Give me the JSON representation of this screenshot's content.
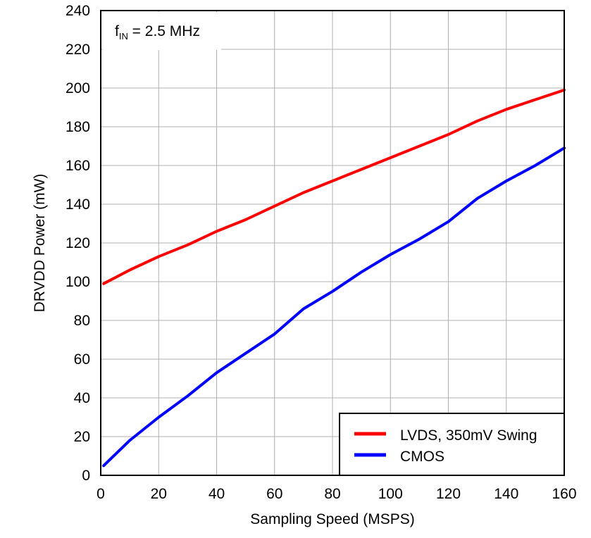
{
  "chart_data": {
    "type": "line",
    "title": "",
    "xlabel": "Sampling Speed (MSPS)",
    "ylabel": "DRVDD Power (mW)",
    "xlim": [
      0,
      160
    ],
    "ylim": [
      0,
      240
    ],
    "x_ticks": [
      0,
      20,
      40,
      60,
      80,
      100,
      120,
      140,
      160
    ],
    "y_ticks": [
      0,
      20,
      40,
      60,
      80,
      100,
      120,
      140,
      160,
      180,
      200,
      220,
      240
    ],
    "grid": true,
    "legend_position": "bottom-right",
    "annotation": {
      "main": "f",
      "subscript": "IN",
      "rest": " = 2.5 MHz"
    },
    "series": [
      {
        "name": "LVDS, 350mV Swing",
        "color": "#ff0000",
        "x": [
          1,
          10,
          20,
          30,
          40,
          50,
          60,
          70,
          80,
          90,
          100,
          110,
          120,
          130,
          140,
          150,
          160
        ],
        "values": [
          99,
          106,
          113,
          119,
          126,
          132,
          139,
          146,
          152,
          158,
          164,
          170,
          176,
          183,
          189,
          194,
          199
        ]
      },
      {
        "name": "CMOS",
        "color": "#0000ff",
        "x": [
          1,
          10,
          20,
          30,
          40,
          50,
          60,
          70,
          80,
          90,
          100,
          110,
          120,
          130,
          140,
          150,
          160
        ],
        "values": [
          5,
          18,
          30,
          41,
          53,
          63,
          73,
          86,
          95,
          105,
          114,
          122,
          131,
          143,
          152,
          160,
          169
        ]
      }
    ]
  }
}
